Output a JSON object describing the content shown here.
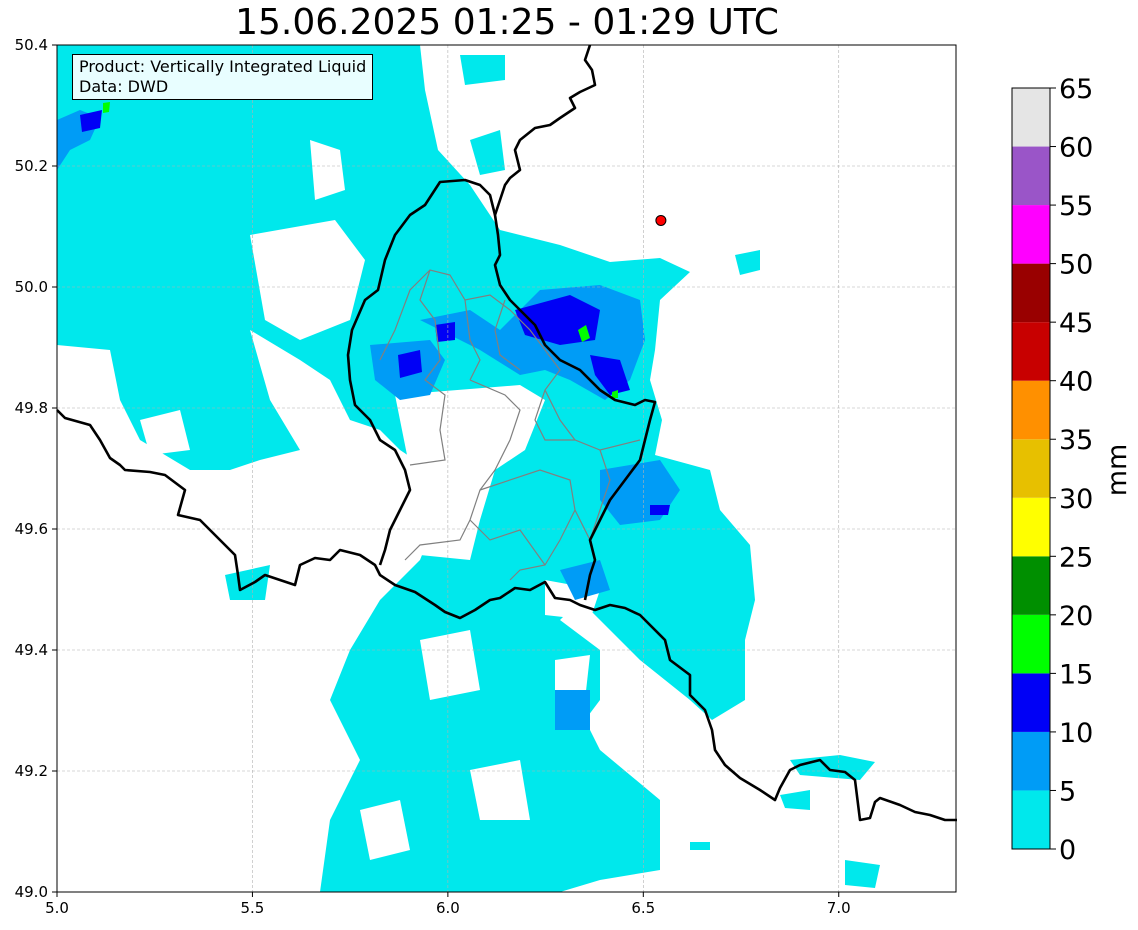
{
  "title": "15.06.2025 01:25 - 01:29 UTC",
  "info": {
    "product": "Product: Vertically Integrated Liquid",
    "data": "Data: DWD"
  },
  "axes": {
    "x_range": [
      5.0,
      7.3
    ],
    "y_range": [
      49.0,
      50.4
    ],
    "x_ticks": [
      "5.0",
      "5.5",
      "6.0",
      "6.5",
      "7.0"
    ],
    "y_ticks": [
      "49.0",
      "49.2",
      "49.4",
      "49.6",
      "49.8",
      "50.0",
      "50.2",
      "50.4"
    ],
    "grid": true
  },
  "colorbar": {
    "unit": "mm",
    "levels": [
      "0",
      "5",
      "10",
      "15",
      "20",
      "25",
      "30",
      "35",
      "40",
      "45",
      "50",
      "55",
      "60",
      "65"
    ],
    "colors": [
      "#00e8ec",
      "#009cf6",
      "#0000f6",
      "#00ff00",
      "#008f00",
      "#ffff00",
      "#e7c000",
      "#ff9000",
      "#c80000",
      "#990000",
      "#ff00ff",
      "#9a55c8",
      "#e5e5e5"
    ]
  },
  "marker": {
    "lon": 6.545,
    "lat": 50.11,
    "color": "#ff0000"
  },
  "colors": {
    "border": "#000000",
    "canton_border": "#808080",
    "grid": "#b0b0b0"
  }
}
